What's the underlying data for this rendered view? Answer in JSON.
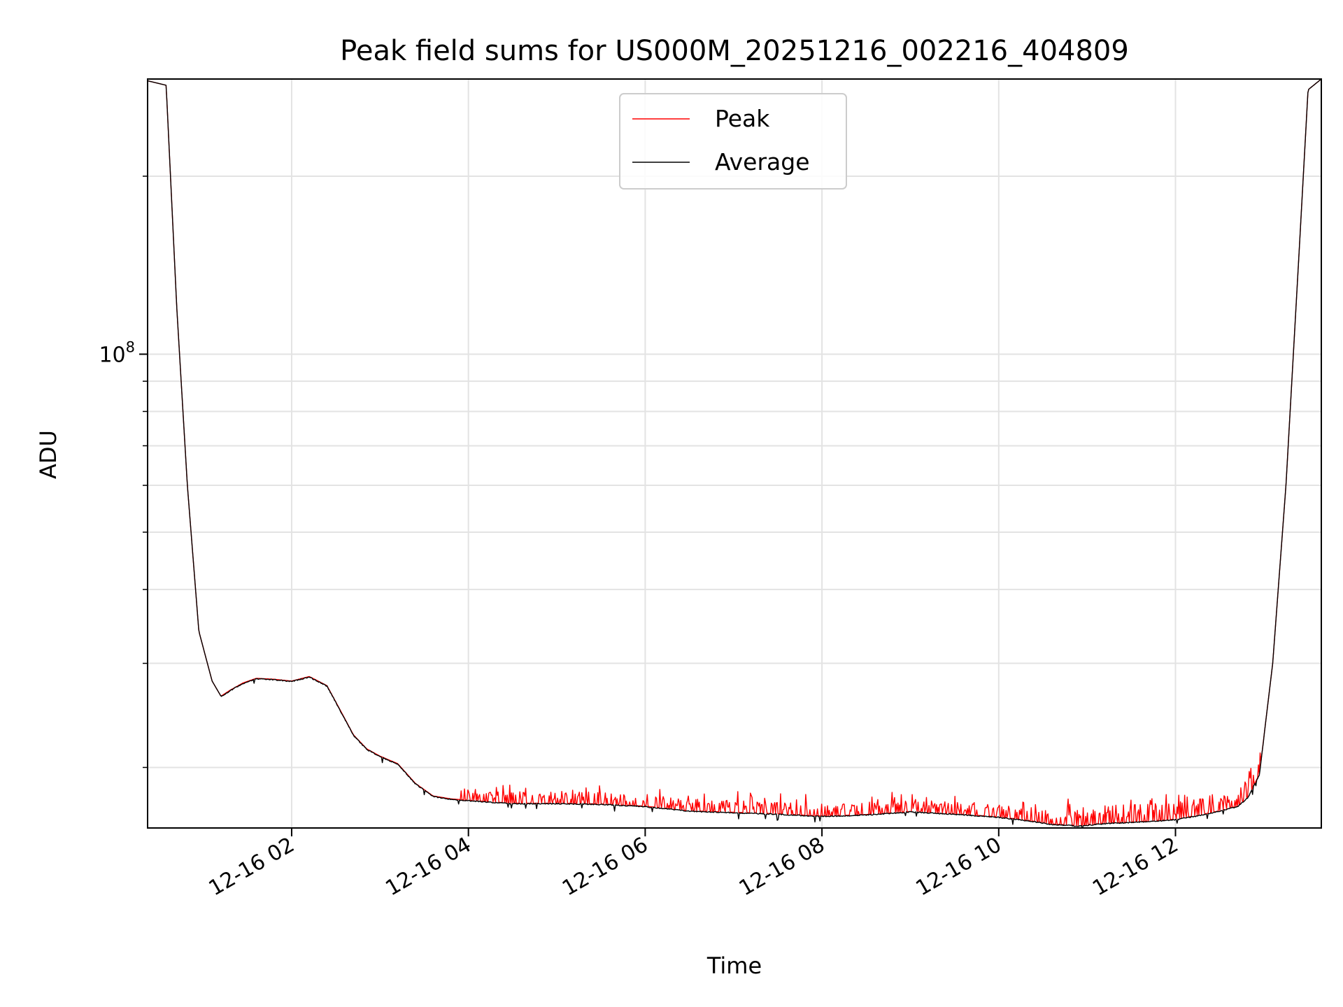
{
  "chart_data": {
    "type": "line",
    "title": "Peak field sums for US000M_20251216_002216_404809",
    "xlabel": "Time",
    "ylabel": "ADU",
    "yscale": "log",
    "ylim": [
      15800000,
      292000000
    ],
    "xlim_hours": [
      0.37,
      13.65
    ],
    "grid": true,
    "legend_position": "upper center",
    "x_ticks": [
      {
        "hour": 2,
        "label": "12-16 02"
      },
      {
        "hour": 4,
        "label": "12-16 04"
      },
      {
        "hour": 6,
        "label": "12-16 06"
      },
      {
        "hour": 8,
        "label": "12-16 08"
      },
      {
        "hour": 10,
        "label": "12-16 10"
      },
      {
        "hour": 12,
        "label": "12-16 12"
      }
    ],
    "y_major_tick": {
      "value": 100000000,
      "base": "10",
      "exponent": "8"
    },
    "y_minor_ticks": [
      20000000,
      30000000,
      40000000,
      50000000,
      60000000,
      70000000,
      80000000,
      90000000,
      200000000
    ],
    "series": [
      {
        "name": "Peak",
        "color": "#ff0000",
        "x_hours": [
          0.37,
          0.58,
          0.7,
          0.82,
          0.95,
          1.1,
          1.2,
          1.3,
          1.45,
          1.6,
          1.8,
          2.0,
          2.2,
          2.4,
          2.55,
          2.7,
          2.85,
          3.0,
          3.2,
          3.4,
          3.6,
          3.8,
          4.0,
          4.5,
          5.0,
          5.5,
          6.0,
          6.5,
          7.0,
          7.5,
          8.0,
          8.5,
          9.0,
          9.5,
          10.0,
          10.3,
          10.6,
          10.9,
          11.2,
          11.6,
          12.0,
          12.3,
          12.5,
          12.7,
          12.82,
          12.95,
          13.1,
          13.25,
          13.4,
          13.5,
          13.65
        ],
        "y": [
          290000000,
          285000000,
          120000000,
          60000000,
          34000000,
          28000000,
          26400000,
          27000000,
          27800000,
          28300000,
          28200000,
          28000000,
          28500000,
          27500000,
          25000000,
          22700000,
          21500000,
          20900000,
          20300000,
          18800000,
          17900000,
          17700000,
          17600000,
          17400000,
          17400000,
          17350000,
          17200000,
          16900000,
          16800000,
          16700000,
          16550000,
          16650000,
          16850000,
          16700000,
          16500000,
          16300000,
          16050000,
          15950000,
          16100000,
          16200000,
          16350000,
          16650000,
          16900000,
          17200000,
          17800000,
          19500000,
          30000000,
          60000000,
          150000000,
          280000000,
          292000000
        ]
      },
      {
        "name": "Average",
        "color": "#000000",
        "x_hours": [
          0.37,
          0.58,
          0.7,
          0.82,
          0.95,
          1.1,
          1.2,
          1.3,
          1.45,
          1.6,
          1.8,
          2.0,
          2.2,
          2.4,
          2.55,
          2.7,
          2.85,
          3.0,
          3.2,
          3.4,
          3.6,
          3.8,
          4.0,
          4.5,
          5.0,
          5.5,
          6.0,
          6.5,
          7.0,
          7.5,
          8.0,
          8.5,
          9.0,
          9.5,
          10.0,
          10.3,
          10.6,
          10.9,
          11.2,
          11.6,
          12.0,
          12.3,
          12.5,
          12.7,
          12.82,
          12.95,
          13.1,
          13.25,
          13.4,
          13.5,
          13.65
        ],
        "y": [
          290000000,
          285000000,
          120000000,
          60000000,
          34000000,
          28000000,
          26400000,
          27000000,
          27800000,
          28300000,
          28200000,
          28000000,
          28500000,
          27500000,
          25000000,
          22700000,
          21500000,
          20900000,
          20300000,
          18800000,
          17900000,
          17700000,
          17600000,
          17400000,
          17400000,
          17350000,
          17200000,
          16900000,
          16800000,
          16700000,
          16550000,
          16650000,
          16850000,
          16700000,
          16500000,
          16300000,
          16050000,
          15950000,
          16100000,
          16200000,
          16350000,
          16650000,
          16900000,
          17200000,
          17800000,
          19500000,
          30000000,
          60000000,
          150000000,
          280000000,
          292000000
        ]
      }
    ],
    "spike_region_hours": [
      3.9,
      13.0
    ],
    "spike_scale": 0.012
  }
}
